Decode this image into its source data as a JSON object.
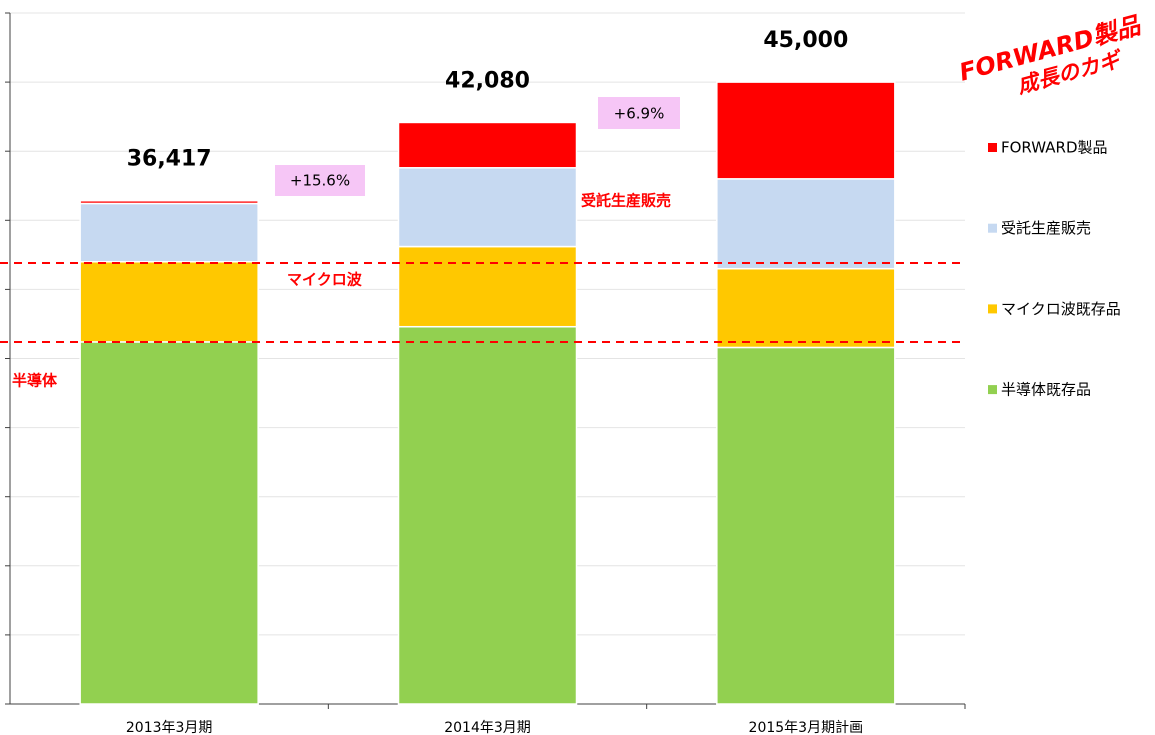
{
  "chart_data": {
    "type": "stacked_bar",
    "categories": [
      "2013年3月期",
      "2014年3月期",
      "2015年3月期計画"
    ],
    "series": [
      {
        "name": "半導体既存品",
        "color": "#92d050",
        "values": [
          26200,
          27300,
          25800
        ]
      },
      {
        "name": "マイクロ波既存品",
        "color": "#ffc800",
        "values": [
          5800,
          5800,
          5700
        ]
      },
      {
        "name": "受託生産販売",
        "color": "#c6d9f1",
        "values": [
          4217,
          5700,
          6500
        ]
      },
      {
        "name": "FORWARD製品",
        "color": "#ff0000",
        "values": [
          200,
          3280,
          7000
        ]
      }
    ],
    "totals": [
      "36,417",
      "42,080",
      "45,000"
    ],
    "growth_labels": [
      "+15.6%",
      "+6.9%"
    ],
    "annotations": {
      "semiconductor": "半導体",
      "microwave": "マイクロ波",
      "contract": "受託生産販売",
      "key_line1": "FORWARD製品",
      "key_line2": "成長のカギ"
    },
    "ylim": [
      0,
      50000
    ],
    "yticks": [
      0,
      5000,
      10000,
      15000,
      20000,
      25000,
      30000,
      35000,
      40000,
      45000,
      50000
    ],
    "grid": true,
    "legend": "right"
  }
}
